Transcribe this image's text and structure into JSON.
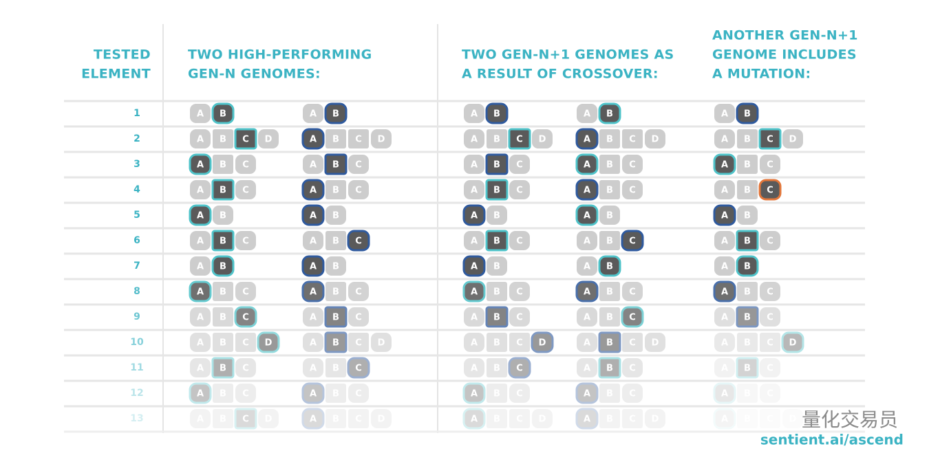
{
  "headers": [
    {
      "lines": [
        "TESTED",
        "ELEMENT"
      ]
    },
    {
      "lines": [
        "TWO HIGH-PERFORMING",
        "GEN-N GENOMES:"
      ]
    },
    {
      "lines": [
        "TWO GEN-N+1 GENOMES AS",
        "A RESULT OF CROSSOVER:"
      ]
    },
    {
      "lines": [
        "ANOTHER GEN-N+1",
        "GENOME INCLUDES",
        "A MUTATION:"
      ]
    }
  ],
  "outline_colors": {
    "teal": "#4fc3c9",
    "blue": "#2f5a9e",
    "orange": "#e2763a"
  },
  "rows": [
    {
      "number": "1",
      "genomes": [
        {
          "options": [
            "A",
            "B"
          ],
          "selected": 1,
          "outline": "teal"
        },
        {
          "options": [
            "A",
            "B"
          ],
          "selected": 1,
          "outline": "blue"
        },
        {
          "options": [
            "A",
            "B"
          ],
          "selected": 1,
          "outline": "blue"
        },
        {
          "options": [
            "A",
            "B"
          ],
          "selected": 1,
          "outline": "teal"
        },
        {
          "options": [
            "A",
            "B"
          ],
          "selected": 1,
          "outline": "blue"
        }
      ]
    },
    {
      "number": "2",
      "genomes": [
        {
          "options": [
            "A",
            "B",
            "C",
            "D"
          ],
          "selected": 2,
          "outline": "teal"
        },
        {
          "options": [
            "A",
            "B",
            "C",
            "D"
          ],
          "selected": 0,
          "outline": "blue"
        },
        {
          "options": [
            "A",
            "B",
            "C",
            "D"
          ],
          "selected": 2,
          "outline": "teal"
        },
        {
          "options": [
            "A",
            "B",
            "C",
            "D"
          ],
          "selected": 0,
          "outline": "blue"
        },
        {
          "options": [
            "A",
            "B",
            "C",
            "D"
          ],
          "selected": 2,
          "outline": "teal"
        }
      ]
    },
    {
      "number": "3",
      "genomes": [
        {
          "options": [
            "A",
            "B",
            "C"
          ],
          "selected": 0,
          "outline": "teal"
        },
        {
          "options": [
            "A",
            "B",
            "C"
          ],
          "selected": 1,
          "outline": "blue"
        },
        {
          "options": [
            "A",
            "B",
            "C"
          ],
          "selected": 1,
          "outline": "blue"
        },
        {
          "options": [
            "A",
            "B",
            "C"
          ],
          "selected": 0,
          "outline": "teal"
        },
        {
          "options": [
            "A",
            "B",
            "C"
          ],
          "selected": 0,
          "outline": "teal"
        }
      ]
    },
    {
      "number": "4",
      "genomes": [
        {
          "options": [
            "A",
            "B",
            "C"
          ],
          "selected": 1,
          "outline": "teal"
        },
        {
          "options": [
            "A",
            "B",
            "C"
          ],
          "selected": 0,
          "outline": "blue"
        },
        {
          "options": [
            "A",
            "B",
            "C"
          ],
          "selected": 1,
          "outline": "teal"
        },
        {
          "options": [
            "A",
            "B",
            "C"
          ],
          "selected": 0,
          "outline": "blue"
        },
        {
          "options": [
            "A",
            "B",
            "C"
          ],
          "selected": 2,
          "outline": "orange"
        }
      ]
    },
    {
      "number": "5",
      "genomes": [
        {
          "options": [
            "A",
            "B"
          ],
          "selected": 0,
          "outline": "teal"
        },
        {
          "options": [
            "A",
            "B"
          ],
          "selected": 0,
          "outline": "blue"
        },
        {
          "options": [
            "A",
            "B"
          ],
          "selected": 0,
          "outline": "blue"
        },
        {
          "options": [
            "A",
            "B"
          ],
          "selected": 0,
          "outline": "teal"
        },
        {
          "options": [
            "A",
            "B"
          ],
          "selected": 0,
          "outline": "blue"
        }
      ]
    },
    {
      "number": "6",
      "genomes": [
        {
          "options": [
            "A",
            "B",
            "C"
          ],
          "selected": 1,
          "outline": "teal"
        },
        {
          "options": [
            "A",
            "B",
            "C"
          ],
          "selected": 2,
          "outline": "blue"
        },
        {
          "options": [
            "A",
            "B",
            "C"
          ],
          "selected": 1,
          "outline": "teal"
        },
        {
          "options": [
            "A",
            "B",
            "C"
          ],
          "selected": 2,
          "outline": "blue"
        },
        {
          "options": [
            "A",
            "B",
            "C"
          ],
          "selected": 1,
          "outline": "teal"
        }
      ]
    },
    {
      "number": "7",
      "genomes": [
        {
          "options": [
            "A",
            "B"
          ],
          "selected": 1,
          "outline": "teal"
        },
        {
          "options": [
            "A",
            "B"
          ],
          "selected": 0,
          "outline": "blue"
        },
        {
          "options": [
            "A",
            "B"
          ],
          "selected": 0,
          "outline": "blue"
        },
        {
          "options": [
            "A",
            "B"
          ],
          "selected": 1,
          "outline": "teal"
        },
        {
          "options": [
            "A",
            "B"
          ],
          "selected": 1,
          "outline": "teal"
        }
      ]
    },
    {
      "number": "8",
      "genomes": [
        {
          "options": [
            "A",
            "B",
            "C"
          ],
          "selected": 0,
          "outline": "teal"
        },
        {
          "options": [
            "A",
            "B",
            "C"
          ],
          "selected": 0,
          "outline": "blue"
        },
        {
          "options": [
            "A",
            "B",
            "C"
          ],
          "selected": 0,
          "outline": "teal"
        },
        {
          "options": [
            "A",
            "B",
            "C"
          ],
          "selected": 0,
          "outline": "blue"
        },
        {
          "options": [
            "A",
            "B",
            "C"
          ],
          "selected": 0,
          "outline": "blue"
        }
      ]
    },
    {
      "number": "9",
      "genomes": [
        {
          "options": [
            "A",
            "B",
            "C"
          ],
          "selected": 2,
          "outline": "teal"
        },
        {
          "options": [
            "A",
            "B",
            "C"
          ],
          "selected": 1,
          "outline": "blue"
        },
        {
          "options": [
            "A",
            "B",
            "C"
          ],
          "selected": 1,
          "outline": "blue"
        },
        {
          "options": [
            "A",
            "B",
            "C"
          ],
          "selected": 2,
          "outline": "teal"
        },
        {
          "options": [
            "A",
            "B",
            "C"
          ],
          "selected": 1,
          "outline": "blue"
        }
      ]
    },
    {
      "number": "10",
      "genomes": [
        {
          "options": [
            "A",
            "B",
            "C",
            "D"
          ],
          "selected": 3,
          "outline": "teal"
        },
        {
          "options": [
            "A",
            "B",
            "C",
            "D"
          ],
          "selected": 1,
          "outline": "blue"
        },
        {
          "options": [
            "A",
            "B",
            "C",
            "D"
          ],
          "selected": 3,
          "outline": "blue"
        },
        {
          "options": [
            "A",
            "B",
            "C",
            "D"
          ],
          "selected": 1,
          "outline": "blue"
        },
        {
          "options": [
            "A",
            "B",
            "C",
            "D"
          ],
          "selected": 3,
          "outline": "teal"
        }
      ]
    },
    {
      "number": "11",
      "genomes": [
        {
          "options": [
            "A",
            "B",
            "C"
          ],
          "selected": 1,
          "outline": "teal"
        },
        {
          "options": [
            "A",
            "B",
            "C"
          ],
          "selected": 2,
          "outline": "blue"
        },
        {
          "options": [
            "A",
            "B",
            "C"
          ],
          "selected": 2,
          "outline": "blue"
        },
        {
          "options": [
            "A",
            "B",
            "C"
          ],
          "selected": 1,
          "outline": "teal"
        },
        {
          "options": [
            "A",
            "B",
            "C"
          ],
          "selected": 1,
          "outline": "teal"
        }
      ]
    },
    {
      "number": "12",
      "genomes": [
        {
          "options": [
            "A",
            "B",
            "C"
          ],
          "selected": 0,
          "outline": "teal"
        },
        {
          "options": [
            "A",
            "B",
            "C"
          ],
          "selected": 0,
          "outline": "blue"
        },
        {
          "options": [
            "A",
            "B",
            "C"
          ],
          "selected": 0,
          "outline": "teal"
        },
        {
          "options": [
            "A",
            "B",
            "C"
          ],
          "selected": 0,
          "outline": "blue"
        },
        {
          "options": [
            "A",
            "B",
            "C"
          ],
          "selected": 0,
          "outline": "teal"
        }
      ]
    },
    {
      "number": "13",
      "genomes": [
        {
          "options": [
            "A",
            "B",
            "C",
            "D"
          ],
          "selected": 2,
          "outline": "teal"
        },
        {
          "options": [
            "A",
            "B",
            "C",
            "D"
          ],
          "selected": 0,
          "outline": "blue"
        },
        {
          "options": [
            "A",
            "B",
            "C",
            "D"
          ],
          "selected": 0,
          "outline": "teal"
        },
        {
          "options": [
            "A",
            "B",
            "C",
            "D"
          ],
          "selected": 0,
          "outline": "blue"
        },
        {
          "options": [
            "A",
            "B",
            "C",
            "D"
          ],
          "selected": 0,
          "outline": "teal"
        }
      ]
    }
  ],
  "footer": {
    "watermark": "量化交易员",
    "url": "sentient.ai/ascend"
  }
}
